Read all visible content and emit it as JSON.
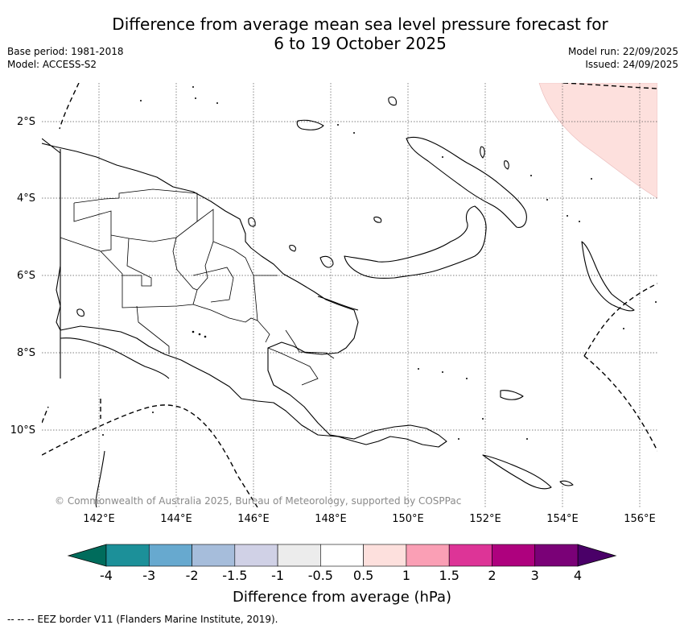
{
  "header": {
    "title_line1": "Difference from average mean sea level pressure forecast for",
    "title_line2": "6 to 19 October 2025",
    "base_period": "Base period: 1981-2018",
    "model": "Model: ACCESS-S2",
    "model_run": "Model run: 22/09/2025",
    "issued": "Issued: 24/09/2025"
  },
  "map": {
    "lat_labels": [
      "2°S",
      "4°S",
      "6°S",
      "8°S",
      "10°S"
    ],
    "lon_labels": [
      "142°E",
      "144°E",
      "146°E",
      "148°E",
      "150°E",
      "152°E",
      "154°E",
      "156°E"
    ],
    "copyright": "© Commonwealth of Australia 2025, Bureau of Meteorology, supported by COSPPac",
    "anomaly_fill_color": "#fde0dd",
    "land_outline_color": "#000000",
    "grid_style": "dotted"
  },
  "colorbar": {
    "title": "Difference from average (hPa)",
    "tick_labels": [
      "-4",
      "-3",
      "-2",
      "-1.5",
      "-1",
      "-0.5",
      "0.5",
      "1",
      "1.5",
      "2",
      "3",
      "4"
    ],
    "low_extend_color": "#006c5c",
    "high_extend_color": "#4a0068",
    "bin_colors": [
      "#1c9099",
      "#67a9cf",
      "#a6bddb",
      "#d0d1e6",
      "#ececec",
      "#ffffff",
      "#fde0dd",
      "#fa9fb5",
      "#dd3497",
      "#ae017e",
      "#7a0177"
    ]
  },
  "footer": {
    "eez_note": "-- -- -- EEZ border V11 (Flanders Marine Institute, 2019)."
  }
}
